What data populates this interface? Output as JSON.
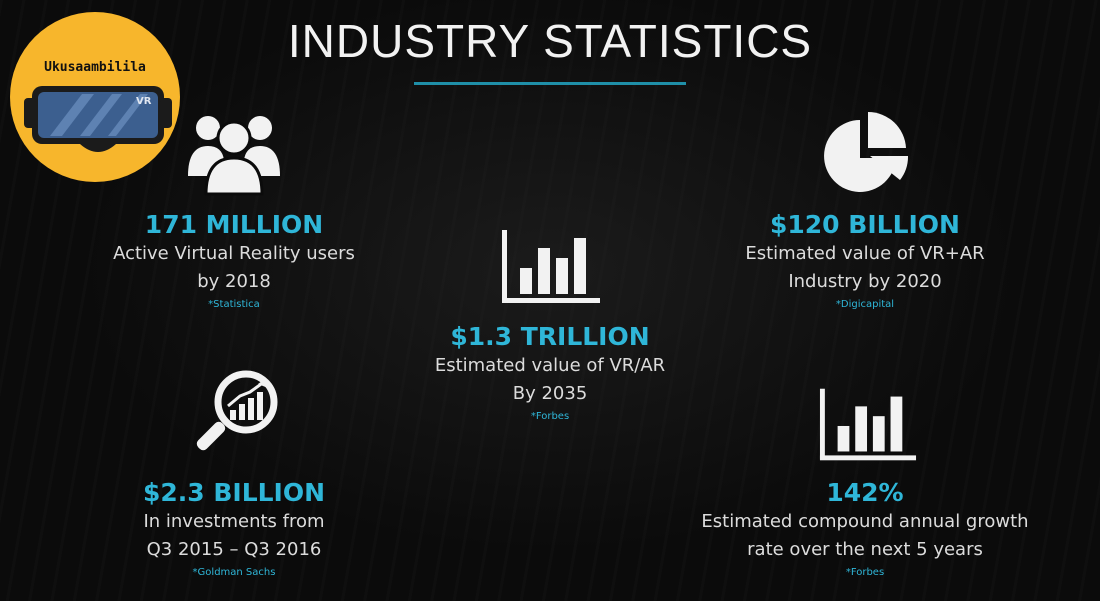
{
  "title": "INDUSTRY STATISTICS",
  "logo": {
    "text": "Ukusaambilila",
    "badge": "VR"
  },
  "colors": {
    "accent": "#2fb6d8",
    "rule": "#1f8fa8",
    "logo_bg": "#f7b62c"
  },
  "stats": [
    {
      "value": "171 MILLION",
      "desc_line1": "Active Virtual Reality users",
      "desc_line2": "by 2018",
      "source": "*Statistica",
      "icon": "users-group-icon"
    },
    {
      "value": "$1.3 TRILLION",
      "desc_line1": "Estimated value of VR/AR",
      "desc_line2": "By 2035",
      "source": "*Forbes",
      "icon": "bar-chart-icon"
    },
    {
      "value": "$120 BILLION",
      "desc_line1": "Estimated value of VR+AR",
      "desc_line2": "Industry by 2020",
      "source": "*Digicapital",
      "icon": "pie-chart-icon"
    },
    {
      "value": "$2.3 BILLION",
      "desc_line1": "In investments from",
      "desc_line2": "Q3 2015 – Q3 2016",
      "source": "*Goldman Sachs",
      "icon": "magnifier-growth-icon"
    },
    {
      "value": "142%",
      "desc_line1": "Estimated compound annual growth",
      "desc_line2": "rate over the next 5 years",
      "source": "*Forbes",
      "icon": "bar-chart-icon"
    }
  ]
}
